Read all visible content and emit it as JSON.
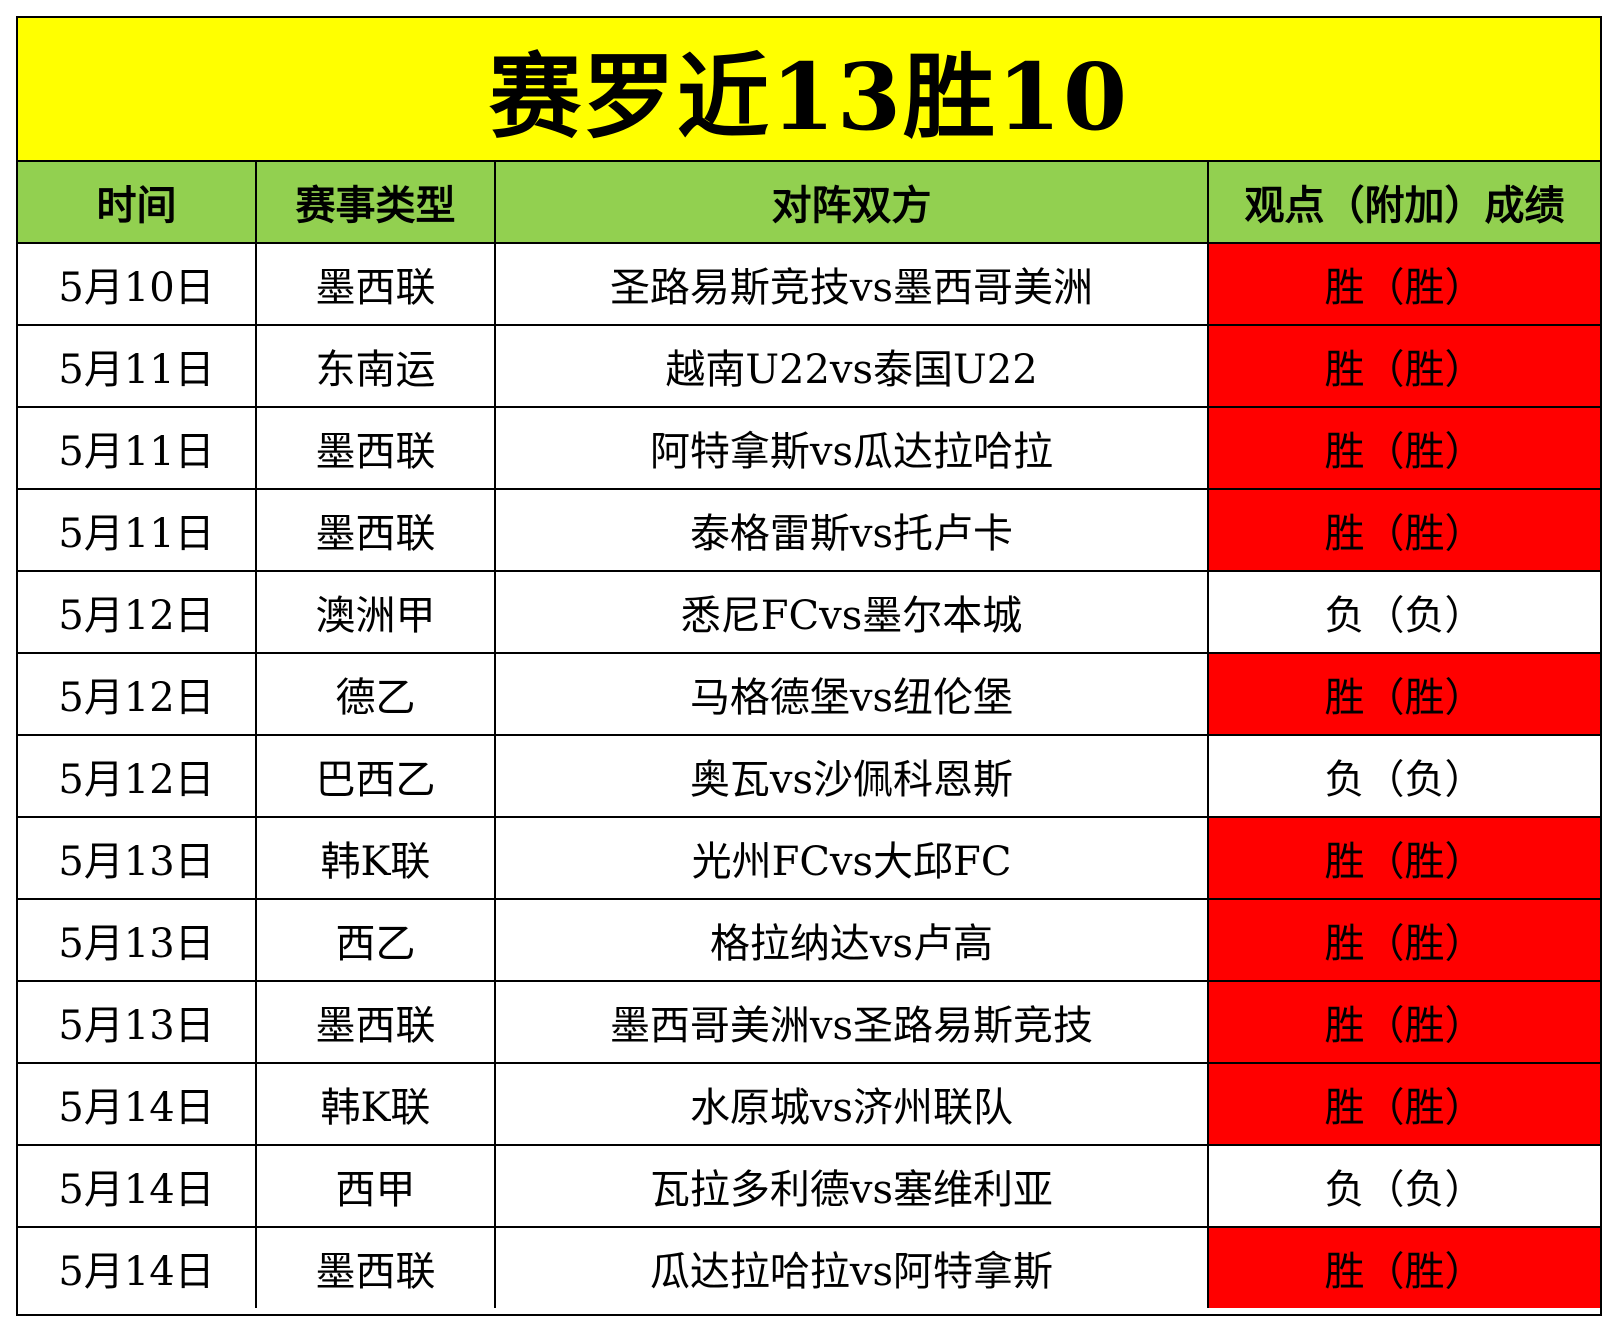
{
  "title": "赛罗近13胜10",
  "colors": {
    "title_bg": "#ffff00",
    "header_bg": "#92d050",
    "win_bg": "#ff0000",
    "loss_bg": "#ffffff"
  },
  "headers": [
    "时间",
    "赛事类型",
    "对阵双方",
    "观点（附加）成绩"
  ],
  "rows": [
    {
      "date": "5月10日",
      "league": "墨西联",
      "match": "圣路易斯竞技vs墨西哥美洲",
      "result": "胜（胜）",
      "status": "win"
    },
    {
      "date": "5月11日",
      "league": "东南运",
      "match": "越南U22vs泰国U22",
      "result": "胜（胜）",
      "status": "win"
    },
    {
      "date": "5月11日",
      "league": "墨西联",
      "match": "阿特拿斯vs瓜达拉哈拉",
      "result": "胜（胜）",
      "status": "win"
    },
    {
      "date": "5月11日",
      "league": "墨西联",
      "match": "泰格雷斯vs托卢卡",
      "result": "胜（胜）",
      "status": "win"
    },
    {
      "date": "5月12日",
      "league": "澳洲甲",
      "match": "悉尼FCvs墨尔本城",
      "result": "负（负）",
      "status": "loss"
    },
    {
      "date": "5月12日",
      "league": "德乙",
      "match": "马格德堡vs纽伦堡",
      "result": "胜（胜）",
      "status": "win"
    },
    {
      "date": "5月12日",
      "league": "巴西乙",
      "match": "奥瓦vs沙佩科恩斯",
      "result": "负（负）",
      "status": "loss"
    },
    {
      "date": "5月13日",
      "league": "韩K联",
      "match": "光州FCvs大邱FC",
      "result": "胜（胜）",
      "status": "win"
    },
    {
      "date": "5月13日",
      "league": "西乙",
      "match": "格拉纳达vs卢高",
      "result": "胜（胜）",
      "status": "win"
    },
    {
      "date": "5月13日",
      "league": "墨西联",
      "match": "墨西哥美洲vs圣路易斯竞技",
      "result": "胜（胜）",
      "status": "win"
    },
    {
      "date": "5月14日",
      "league": "韩K联",
      "match": "水原城vs济州联队",
      "result": "胜（胜）",
      "status": "win"
    },
    {
      "date": "5月14日",
      "league": "西甲",
      "match": "瓦拉多利德vs塞维利亚",
      "result": "负（负）",
      "status": "loss"
    },
    {
      "date": "5月14日",
      "league": "墨西联",
      "match": "瓜达拉哈拉vs阿特拿斯",
      "result": "胜（胜）",
      "status": "win"
    }
  ]
}
